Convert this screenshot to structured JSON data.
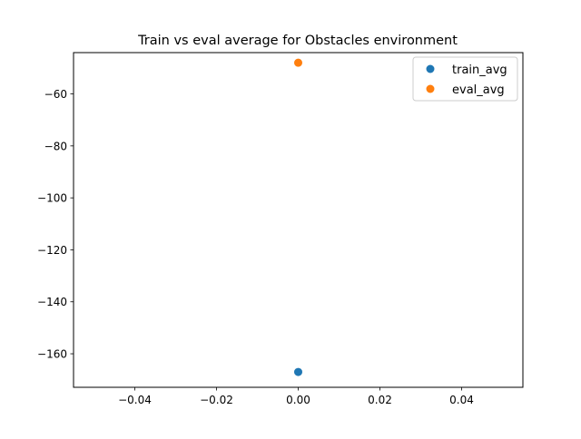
{
  "chart_data": {
    "type": "scatter",
    "title": "Train vs eval average for Obstacles environment",
    "xlabel": "",
    "ylabel": "",
    "xlim": [
      -0.055,
      0.055
    ],
    "ylim": [
      -172.9,
      -44.1
    ],
    "xticks": [
      -0.04,
      -0.02,
      0.0,
      0.02,
      0.04
    ],
    "xtick_labels": [
      "−0.04",
      "−0.02",
      "0.00",
      "0.02",
      "0.04"
    ],
    "yticks": [
      -160,
      -140,
      -120,
      -100,
      -80,
      -60
    ],
    "ytick_labels": [
      "−160",
      "−140",
      "−120",
      "−100",
      "−80",
      "−60"
    ],
    "grid": false,
    "legend_position": "top-right",
    "series": [
      {
        "name": "train_avg",
        "color": "#1f77b4",
        "points": [
          {
            "x": 0.0,
            "y": -167.0
          }
        ]
      },
      {
        "name": "eval_avg",
        "color": "#ff7f0e",
        "points": [
          {
            "x": 0.0,
            "y": -48.0
          }
        ]
      }
    ]
  }
}
